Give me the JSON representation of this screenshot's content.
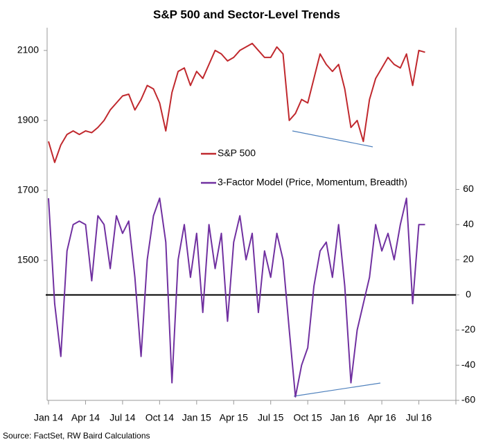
{
  "chart_data": {
    "type": "line",
    "title": "S&P 500 and Sector-Level Trends",
    "source": "Source: FactSet, RW Baird Calculations",
    "categories": [
      "Jan 14",
      null,
      null,
      null,
      null,
      null,
      "Apr 14",
      null,
      null,
      null,
      null,
      null,
      "Jul 14",
      null,
      null,
      null,
      null,
      null,
      "Oct 14",
      null,
      null,
      null,
      null,
      null,
      "Jan 15",
      null,
      null,
      null,
      null,
      null,
      "Apr 15",
      null,
      null,
      null,
      null,
      null,
      "Jul 15",
      null,
      null,
      null,
      null,
      null,
      "Oct 15",
      null,
      null,
      null,
      null,
      null,
      "Jan 16",
      null,
      null,
      null,
      null,
      null,
      "Apr 16",
      null,
      null,
      null,
      null,
      null,
      "Jul 16",
      null,
      null,
      null,
      null,
      null,
      null
    ],
    "series": [
      {
        "name": "S&P 500",
        "color": "#c0282d",
        "axis": "y",
        "values": [
          1840,
          1780,
          1830,
          1860,
          1870,
          1860,
          1870,
          1865,
          1880,
          1900,
          1930,
          1950,
          1970,
          1975,
          1930,
          1960,
          2000,
          1990,
          1950,
          1870,
          1980,
          2040,
          2050,
          2000,
          2040,
          2020,
          2060,
          2100,
          2090,
          2070,
          2080,
          2100,
          2110,
          2120,
          2100,
          2080,
          2080,
          2110,
          2090,
          1900,
          1920,
          1960,
          1950,
          2020,
          2090,
          2060,
          2040,
          2060,
          1990,
          1880,
          1900,
          1840,
          1960,
          2020,
          2050,
          2080,
          2060,
          2050,
          2090,
          2000,
          2100,
          2095,
          null,
          null,
          null,
          null,
          null
        ]
      },
      {
        "name": "3-Factor Model (Price, Momentum, Breadth)",
        "color": "#7030a0",
        "axis": "y2",
        "values": [
          55,
          -5,
          -35,
          25,
          40,
          42,
          40,
          8,
          45,
          40,
          15,
          45,
          35,
          42,
          10,
          -35,
          20,
          45,
          55,
          30,
          -50,
          20,
          40,
          10,
          35,
          -10,
          40,
          15,
          35,
          -15,
          30,
          45,
          20,
          35,
          -10,
          25,
          10,
          35,
          20,
          -20,
          -58,
          -40,
          -30,
          5,
          25,
          30,
          10,
          40,
          5,
          -50,
          -20,
          -5,
          10,
          40,
          25,
          35,
          20,
          40,
          55,
          -5,
          40,
          40,
          null,
          null,
          null,
          null,
          null
        ]
      }
    ],
    "ylim": [
      1100,
      2165
    ],
    "yticks": [
      1500,
      1700,
      1900,
      2100
    ],
    "y2lim": [
      -60,
      152
    ],
    "y2ticks": [
      -60,
      -40,
      -20,
      0,
      20,
      40,
      60
    ],
    "legend": "center"
  }
}
